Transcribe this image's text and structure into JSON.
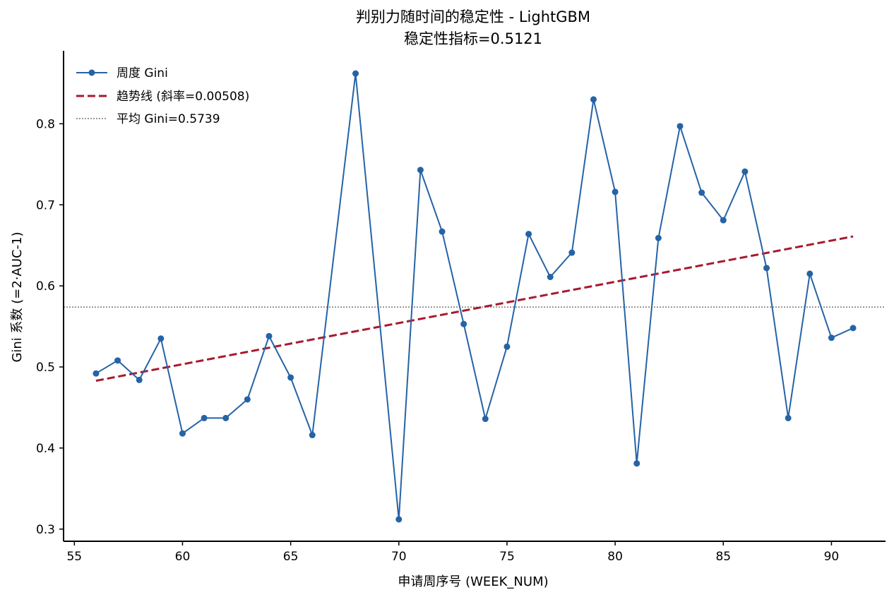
{
  "chart_data": {
    "type": "line",
    "title": "判别力随时间的稳定性 - LightGBM",
    "subtitle": "稳定性指标=0.5121",
    "xlabel": "申请周序号 (WEEK_NUM)",
    "ylabel": "Gini 系数 (=2·AUC-1)",
    "xlim": [
      54.5,
      92.5
    ],
    "ylim": [
      0.285,
      0.89
    ],
    "xticks": [
      55,
      60,
      65,
      70,
      75,
      80,
      85,
      90
    ],
    "yticks": [
      0.3,
      0.4,
      0.5,
      0.6,
      0.7,
      0.8
    ],
    "grid": false,
    "legend_position": "top-left",
    "series": [
      {
        "name": "周度 Gini",
        "kind": "line-markers",
        "color": "#2563a6",
        "x": [
          56,
          57,
          58,
          59,
          60,
          61,
          62,
          63,
          64,
          65,
          66,
          68,
          70,
          71,
          72,
          73,
          74,
          75,
          76,
          77,
          78,
          79,
          80,
          81,
          82,
          83,
          84,
          85,
          86,
          87,
          88,
          89,
          90,
          91
        ],
        "y": [
          0.492,
          0.508,
          0.484,
          0.535,
          0.418,
          0.437,
          0.437,
          0.46,
          0.538,
          0.487,
          0.416,
          0.862,
          0.312,
          0.743,
          0.667,
          0.553,
          0.436,
          0.525,
          0.664,
          0.611,
          0.641,
          0.83,
          0.716,
          0.381,
          0.659,
          0.797,
          0.715,
          0.681,
          0.741,
          0.622,
          0.437,
          0.615,
          0.536,
          0.548
        ]
      },
      {
        "name": "趋势线 (斜率=0.00508)",
        "kind": "dashed-line",
        "color": "#a8192e",
        "x": [
          56,
          91
        ],
        "y": [
          0.483,
          0.661
        ]
      },
      {
        "name": "平均 Gini=0.5739",
        "kind": "dotted-hline",
        "color": "#777777",
        "y": 0.5739
      }
    ]
  }
}
